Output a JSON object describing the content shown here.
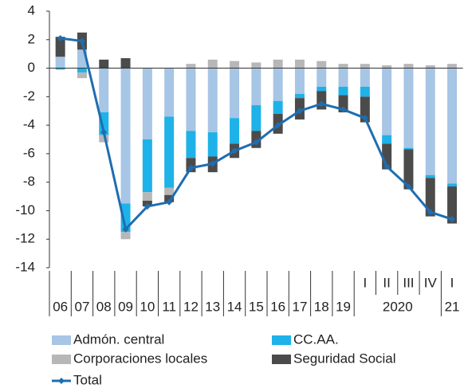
{
  "chart_data": {
    "type": "bar",
    "stacked": true,
    "categories": [
      null,
      null,
      null,
      null,
      null,
      null,
      null,
      null,
      null,
      null,
      null,
      null,
      null,
      null,
      "I",
      "II",
      "III",
      "IV",
      "I"
    ],
    "year_groups": [
      {
        "label": "06",
        "span": 1
      },
      {
        "label": "07",
        "span": 1
      },
      {
        "label": "08",
        "span": 1
      },
      {
        "label": "09",
        "span": 1
      },
      {
        "label": "10",
        "span": 1
      },
      {
        "label": "11",
        "span": 1
      },
      {
        "label": "12",
        "span": 1
      },
      {
        "label": "13",
        "span": 1
      },
      {
        "label": "14",
        "span": 1
      },
      {
        "label": "15",
        "span": 1
      },
      {
        "label": "16",
        "span": 1
      },
      {
        "label": "17",
        "span": 1
      },
      {
        "label": "18",
        "span": 1
      },
      {
        "label": "19",
        "span": 1
      },
      {
        "label": "2020",
        "span": 4
      },
      {
        "label": "21",
        "span": 1
      }
    ],
    "series": [
      {
        "name": "Admón. central",
        "color": "#a7c5e5",
        "values": [
          0.8,
          1.3,
          -3.1,
          -9.5,
          -5.0,
          -3.4,
          -4.4,
          -4.5,
          -3.5,
          -2.6,
          -2.3,
          -1.8,
          -1.3,
          -1.3,
          -1.3,
          -4.7,
          -5.6,
          -7.5,
          -8.1
        ]
      },
      {
        "name": "CC.AA.",
        "color": "#1eb2e8",
        "values": [
          -0.1,
          -0.3,
          -1.6,
          -2.0,
          -3.7,
          -5.0,
          -1.9,
          -1.7,
          -1.8,
          -1.8,
          -0.9,
          -0.3,
          -0.3,
          -0.6,
          -0.7,
          -0.6,
          -0.1,
          -0.2,
          -0.2
        ]
      },
      {
        "name": "Corporaciones locales",
        "color": "#b7b7b7",
        "values": [
          0,
          -0.4,
          -0.5,
          -0.5,
          -0.6,
          -0.5,
          0.3,
          0.6,
          0.5,
          0.4,
          0.6,
          0.6,
          0.5,
          0.3,
          0.3,
          0.2,
          0.3,
          0.2,
          0.3
        ]
      },
      {
        "name": "Seguridad Social",
        "color": "#4b4b4b",
        "values": [
          1.4,
          1.2,
          0.6,
          0.7,
          -0.4,
          -0.5,
          -1.0,
          -1.1,
          -1.0,
          -1.2,
          -1.4,
          -1.5,
          -1.3,
          -1.2,
          -1.8,
          -1.8,
          -2.8,
          -2.7,
          -2.6
        ]
      },
      {
        "name": "Total",
        "color": "#1f6db0",
        "type": "line",
        "values": [
          2.1,
          1.9,
          -4.5,
          -11.3,
          -9.7,
          -9.4,
          -7.0,
          -6.7,
          -5.8,
          -5.2,
          -4.0,
          -3.0,
          -2.5,
          -2.9,
          -3.5,
          -6.9,
          -8.3,
          -10.1,
          -10.6
        ]
      }
    ],
    "ylim": [
      -14,
      4
    ],
    "yticks": [
      -14,
      -12,
      -10,
      -8,
      -6,
      -4,
      -2,
      0,
      2,
      4
    ]
  }
}
